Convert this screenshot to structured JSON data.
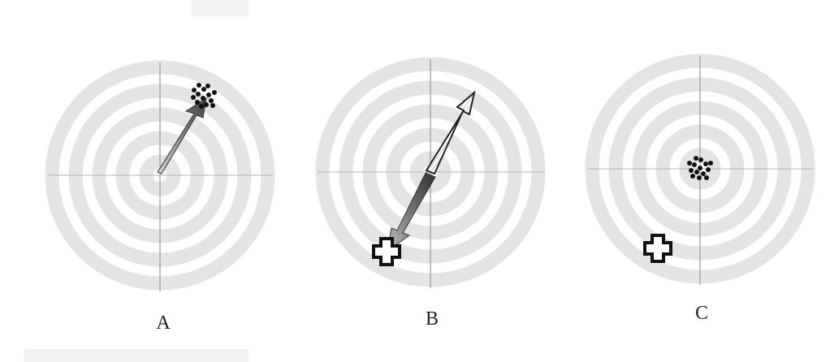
{
  "colors": {
    "background": "#ffffff",
    "ring": "#e3e3e3",
    "crosshair": "#9a9a9a",
    "shot": "#111111",
    "arrow_dark": "#444444",
    "arrow_light": "#bdbdbd",
    "plus_marker": "#111111"
  },
  "panels": [
    {
      "label": "A",
      "icons": [
        "target-icon",
        "shot-cluster-icon",
        "shift-arrow-icon"
      ]
    },
    {
      "label": "B",
      "icons": [
        "target-icon",
        "plus-marker-icon",
        "shift-arrow-icon",
        "hollow-arrow-icon"
      ]
    },
    {
      "label": "C",
      "icons": [
        "target-icon",
        "shot-cluster-icon",
        "plus-marker-icon"
      ]
    }
  ]
}
